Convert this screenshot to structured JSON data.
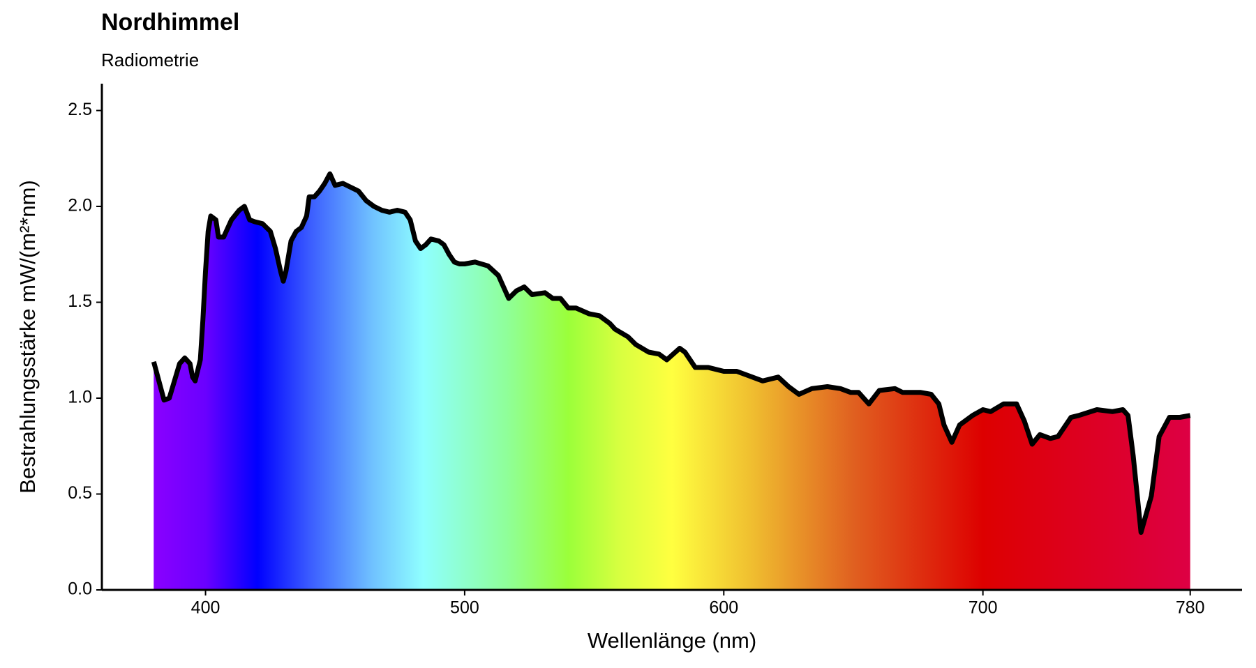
{
  "chart_data": {
    "type": "area-line",
    "title": "Nordhimmel",
    "subtitle": "Radiometrie",
    "x_label": "Wellenlänge (nm)",
    "y_label": "Bestrahlungsstärke  mW/(m²*nm)",
    "color": "#000000",
    "x": [
      380,
      382,
      384,
      386,
      388,
      390,
      392,
      394,
      395,
      396,
      398,
      399,
      400,
      401,
      402,
      404,
      405,
      407,
      410,
      413,
      415,
      417,
      419,
      422,
      425,
      427,
      429,
      430,
      431,
      433,
      435,
      437,
      439,
      440,
      442,
      444,
      446,
      448,
      450,
      453,
      456,
      459,
      462,
      465,
      468,
      471,
      474,
      477,
      479,
      481,
      483,
      485,
      487,
      490,
      492,
      494,
      496,
      498,
      500,
      504,
      509,
      513,
      517,
      520,
      523,
      526,
      531,
      534,
      537,
      540,
      543,
      548,
      552,
      556,
      558,
      563,
      566,
      571,
      575,
      578,
      583,
      585,
      589,
      594,
      600,
      605,
      609,
      615,
      621,
      625,
      629,
      634,
      640,
      645,
      649,
      652,
      656,
      660,
      666,
      669,
      676,
      680,
      683,
      685,
      688,
      691,
      696,
      700,
      703,
      708,
      713,
      716,
      719,
      722,
      726,
      729,
      734,
      737,
      744,
      750,
      754,
      756,
      758,
      761,
      765,
      768,
      772,
      776,
      780
    ],
    "values": [
      1.19,
      1.09,
      0.99,
      1.0,
      1.09,
      1.18,
      1.21,
      1.18,
      1.11,
      1.09,
      1.2,
      1.41,
      1.66,
      1.87,
      1.95,
      1.93,
      1.84,
      1.84,
      1.93,
      1.98,
      2.0,
      1.93,
      1.92,
      1.91,
      1.87,
      1.78,
      1.66,
      1.61,
      1.66,
      1.82,
      1.87,
      1.89,
      1.95,
      2.05,
      2.05,
      2.08,
      2.12,
      2.17,
      2.11,
      2.12,
      2.1,
      2.08,
      2.03,
      2.0,
      1.98,
      1.97,
      1.98,
      1.97,
      1.93,
      1.82,
      1.78,
      1.8,
      1.83,
      1.82,
      1.8,
      1.75,
      1.71,
      1.7,
      1.7,
      1.71,
      1.69,
      1.64,
      1.52,
      1.56,
      1.58,
      1.54,
      1.55,
      1.52,
      1.52,
      1.47,
      1.47,
      1.44,
      1.43,
      1.39,
      1.36,
      1.32,
      1.28,
      1.24,
      1.23,
      1.2,
      1.26,
      1.24,
      1.16,
      1.16,
      1.14,
      1.14,
      1.12,
      1.09,
      1.11,
      1.06,
      1.02,
      1.05,
      1.06,
      1.05,
      1.03,
      1.03,
      0.97,
      1.04,
      1.05,
      1.03,
      1.03,
      1.02,
      0.97,
      0.86,
      0.77,
      0.86,
      0.91,
      0.94,
      0.93,
      0.97,
      0.97,
      0.88,
      0.76,
      0.81,
      0.79,
      0.8,
      0.9,
      0.91,
      0.94,
      0.93,
      0.94,
      0.91,
      0.7,
      0.3,
      0.49,
      0.8,
      0.9,
      0.9,
      0.91
    ],
    "xlim": [
      360,
      800
    ],
    "ylim": [
      0,
      2.64
    ],
    "xticks": [
      400,
      500,
      600,
      700,
      780
    ],
    "yticks": [
      {
        "value": 0,
        "label": "0.0"
      },
      0.5,
      {
        "value": 1,
        "label": "1.0"
      },
      1.5,
      {
        "value": 2,
        "label": "2.0"
      },
      2.5
    ]
  }
}
